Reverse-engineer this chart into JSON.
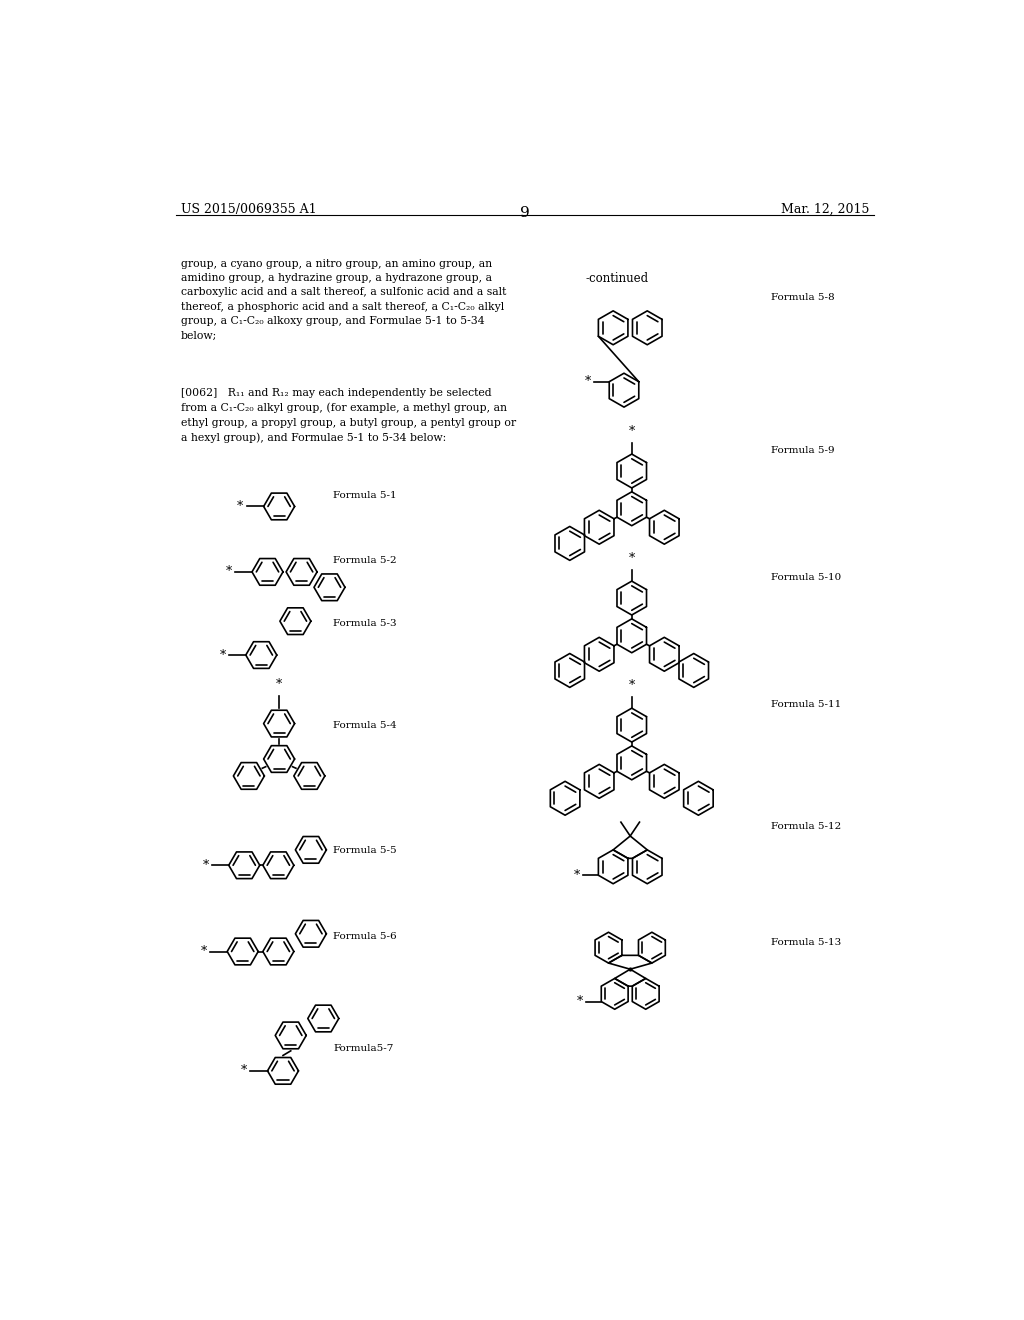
{
  "bg_color": "#ffffff",
  "page_number": "9",
  "left_header": "US 2015/0069355 A1",
  "right_header": "Mar. 12, 2015"
}
